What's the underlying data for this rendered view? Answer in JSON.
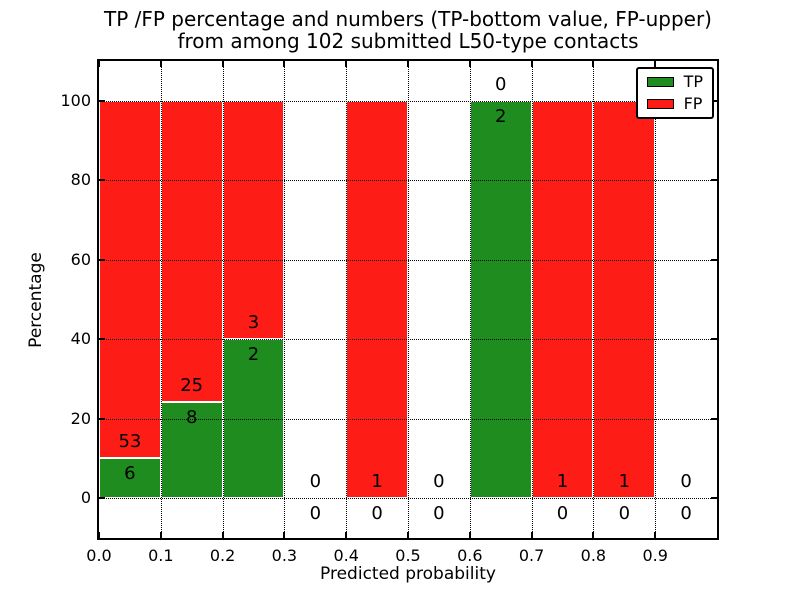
{
  "chart_data": {
    "type": "bar",
    "stacked": true,
    "title_lines": [
      "TP /FP percentage and numbers (TP-bottom value, FP-upper)",
      "from among 102 submitted L50-type contacts"
    ],
    "xlabel": "Predicted probability",
    "ylabel": "Percentage",
    "xlim": [
      0.0,
      1.0
    ],
    "ylim": [
      -10,
      110
    ],
    "x_ticks": [
      "0.0",
      "0.1",
      "0.2",
      "0.3",
      "0.4",
      "0.5",
      "0.6",
      "0.7",
      "0.8",
      "0.9"
    ],
    "y_ticks": [
      "0",
      "20",
      "40",
      "60",
      "80",
      "100"
    ],
    "grid": true,
    "total_contacts": 102,
    "legend_position": "upper right",
    "legend": [
      {
        "name": "tp",
        "label": "TP",
        "color": "#1e8c1e"
      },
      {
        "name": "fp",
        "label": "FP",
        "color": "#fd1d16"
      }
    ],
    "colors": {
      "tp": "#1e8c1e",
      "fp": "#fd1d16",
      "grid": "#000000",
      "text": "#000000"
    },
    "bins": [
      {
        "range": [
          0.0,
          0.1
        ],
        "tp": 6,
        "fp": 53,
        "tp_pct": 10.17,
        "fp_pct": 89.83
      },
      {
        "range": [
          0.1,
          0.2
        ],
        "tp": 8,
        "fp": 25,
        "tp_pct": 24.24,
        "fp_pct": 75.76
      },
      {
        "range": [
          0.2,
          0.3
        ],
        "tp": 2,
        "fp": 3,
        "tp_pct": 40.0,
        "fp_pct": 60.0
      },
      {
        "range": [
          0.3,
          0.4
        ],
        "tp": 0,
        "fp": 0,
        "tp_pct": 0,
        "fp_pct": 0
      },
      {
        "range": [
          0.4,
          0.5
        ],
        "tp": 0,
        "fp": 1,
        "tp_pct": 0,
        "fp_pct": 100
      },
      {
        "range": [
          0.5,
          0.6
        ],
        "tp": 0,
        "fp": 0,
        "tp_pct": 0,
        "fp_pct": 0
      },
      {
        "range": [
          0.6,
          0.7
        ],
        "tp": 2,
        "fp": 0,
        "tp_pct": 100,
        "fp_pct": 0
      },
      {
        "range": [
          0.7,
          0.8
        ],
        "tp": 0,
        "fp": 1,
        "tp_pct": 0,
        "fp_pct": 100
      },
      {
        "range": [
          0.8,
          0.9
        ],
        "tp": 0,
        "fp": 1,
        "tp_pct": 0,
        "fp_pct": 100
      },
      {
        "range": [
          0.9,
          1.0
        ],
        "tp": 0,
        "fp": 0,
        "tp_pct": 0,
        "fp_pct": 0
      }
    ]
  }
}
